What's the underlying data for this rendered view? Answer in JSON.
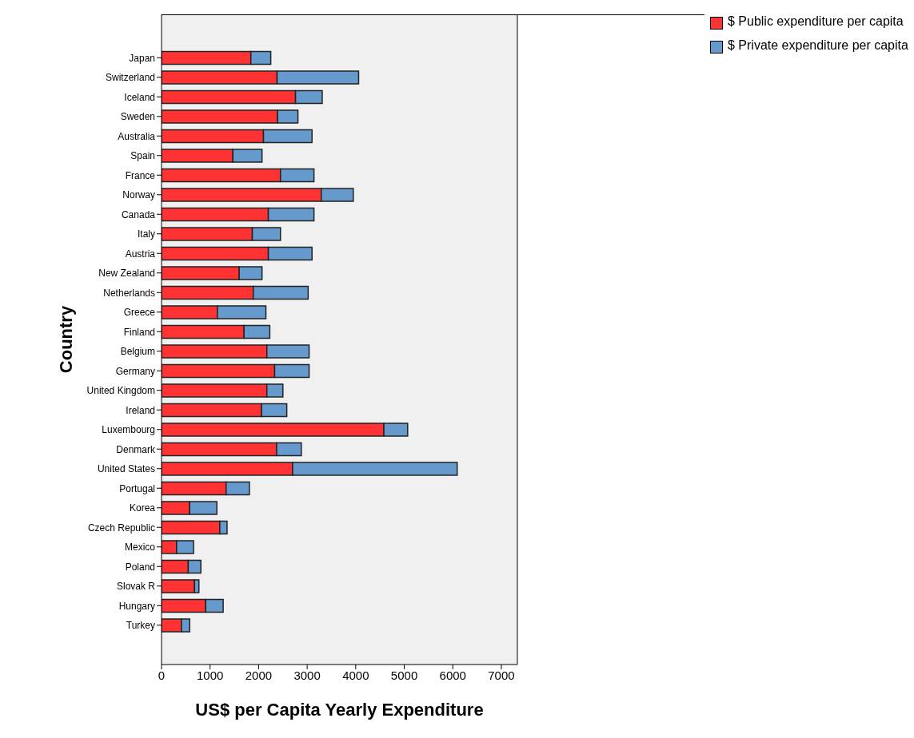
{
  "chart_data": {
    "type": "bar",
    "orientation": "horizontal",
    "stacked": true,
    "xlabel": "US$ per Capita Yearly Expenditure",
    "ylabel": "Country",
    "categories": [
      "Japan",
      "Switzerland",
      "Iceland",
      "Sweden",
      "Australia",
      "Spain",
      "France",
      "Norway",
      "Canada",
      "Italy",
      "Austria",
      "New Zealand",
      "Netherlands",
      "Greece",
      "Finland",
      "Belgium",
      "Germany",
      "United Kingdom",
      "Ireland",
      "Luxembourg",
      "Denmark",
      "United States",
      "Portugal",
      "Korea",
      "Czech Republic",
      "Mexico",
      "Poland",
      "Slovak R",
      "Hungary",
      "Turkey"
    ],
    "series": [
      {
        "name": "$ Public expenditure per capita",
        "color": "#ff3333",
        "values": [
          1840,
          2380,
          2760,
          2390,
          2100,
          1470,
          2450,
          3290,
          2200,
          1870,
          2200,
          1600,
          1890,
          1150,
          1700,
          2170,
          2330,
          2170,
          2060,
          4580,
          2370,
          2700,
          1330,
          580,
          1200,
          310,
          550,
          680,
          910,
          410
        ]
      },
      {
        "name": "$ Private expenditure per capita",
        "color": "#6699cc",
        "values": [
          410,
          1680,
          550,
          420,
          1000,
          600,
          690,
          660,
          940,
          580,
          900,
          470,
          1130,
          1000,
          530,
          870,
          710,
          330,
          520,
          490,
          510,
          3390,
          480,
          560,
          150,
          350,
          260,
          90,
          360,
          170
        ]
      }
    ],
    "xlim": [
      0,
      7330
    ],
    "xticks": [
      0,
      1000,
      2000,
      3000,
      4000,
      5000,
      6000,
      7000
    ],
    "legend": "top right"
  }
}
